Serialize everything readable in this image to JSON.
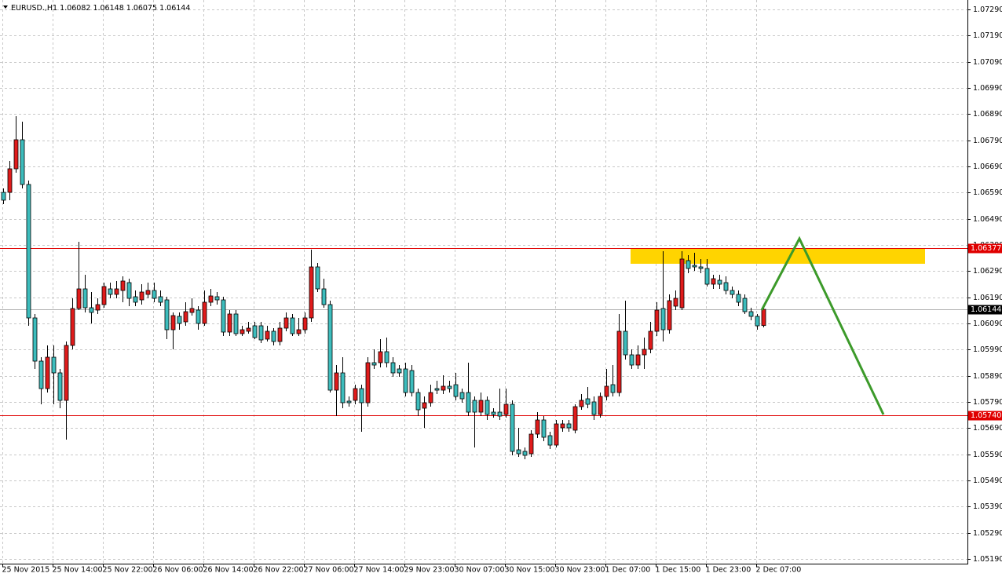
{
  "chart_data": {
    "type": "candlestick",
    "symbol": "EURUSD.,H1",
    "categories": [
      "25 Nov 2015",
      null,
      null,
      null,
      null,
      null,
      null,
      null,
      "25 Nov 14:00",
      null,
      null,
      null,
      null,
      null,
      null,
      null,
      "25 Nov 22:00",
      null,
      null,
      null,
      null,
      null,
      null,
      null,
      "26 Nov 06:00",
      null,
      null,
      null,
      null,
      null,
      null,
      null,
      "26 Nov 14:00",
      null,
      null,
      null,
      null,
      null,
      null,
      null,
      "26 Nov 22:00",
      null,
      null,
      null,
      null,
      null,
      null,
      null,
      "27 Nov 06:00",
      null,
      null,
      null,
      null,
      null,
      null,
      null,
      "27 Nov 14:00",
      null,
      null,
      null,
      null,
      null,
      null,
      null,
      "29 Nov 23:00",
      null,
      null,
      null,
      null,
      null,
      null,
      null,
      "30 Nov 07:00",
      null,
      null,
      null,
      null,
      null,
      null,
      null,
      "30 Nov 15:00",
      null,
      null,
      null,
      null,
      null,
      null,
      null,
      "30 Nov 23:00",
      null,
      null,
      null,
      null,
      null,
      null,
      null,
      "1 Dec 07:00",
      null,
      null,
      null,
      null,
      null,
      null,
      null,
      "1 Dec 15:00",
      null,
      null,
      null,
      null,
      null,
      null,
      null,
      "1 Dec 23:00",
      null,
      null,
      null,
      null,
      null,
      null,
      null,
      "2 Dec 07:00",
      null
    ],
    "open": [
      1.06591,
      1.06591,
      1.06681,
      1.06792,
      1.06621,
      1.06111,
      1.05946,
      1.05841,
      1.05961,
      1.05901,
      1.05796,
      1.06006,
      1.06147,
      1.06222,
      1.0615,
      1.06141,
      1.06162,
      1.06222,
      1.06201,
      1.06216,
      1.06246,
      1.06192,
      1.0618,
      1.06201,
      1.06216,
      1.06192,
      1.0618,
      1.06066,
      1.06117,
      1.06096,
      1.06132,
      1.06141,
      1.0609,
      1.06171,
      1.06192,
      1.0618,
      1.06057,
      1.06126,
      1.06051,
      1.0606,
      1.06081,
      1.06081,
      1.0603,
      1.0606,
      1.06021,
      1.06072,
      1.06111,
      1.06051,
      1.06066,
      1.06111,
      1.06306,
      1.06222,
      1.06162,
      1.05835,
      1.05901,
      1.05793,
      1.05796,
      1.05841,
      1.05787,
      1.0594,
      1.0594,
      1.05982,
      1.0594,
      1.05916,
      1.05916,
      1.0591,
      1.05826,
      1.05766,
      1.05787,
      1.05841,
      1.05835,
      1.0585,
      1.05856,
      1.05826,
      1.05826,
      1.05796,
      1.05751,
      1.05796,
      1.05751,
      1.05751,
      1.05742,
      1.05781,
      1.05607,
      1.05601,
      1.05592,
      1.05667,
      1.05721,
      1.05661,
      1.05625,
      1.05691,
      1.05706,
      1.05682,
      1.05772,
      1.05802,
      1.0579,
      1.05742,
      1.05811,
      1.05856,
      1.05826,
      1.0606,
      1.0597,
      1.05931,
      1.0597,
      1.05991,
      1.0606,
      1.06147,
      1.06066,
      1.06156,
      1.0615,
      1.0633,
      1.06312,
      1.06306,
      1.063,
      1.0624,
      1.06255,
      1.06246,
      1.06216,
      1.06201,
      1.06186,
      1.06135,
      1.06117,
      1.06082
    ],
    "high": [
      1.06606,
      1.06711,
      1.06882,
      1.06861,
      1.06636,
      1.06126,
      1.05961,
      1.06006,
      1.06006,
      1.05916,
      1.06021,
      1.06186,
      1.06402,
      1.06276,
      1.0621,
      1.06186,
      1.06246,
      1.06246,
      1.06252,
      1.0627,
      1.06261,
      1.06216,
      1.0624,
      1.06246,
      1.06246,
      1.06216,
      1.06192,
      1.06132,
      1.06132,
      1.06171,
      1.06186,
      1.06156,
      1.06216,
      1.06222,
      1.0621,
      1.06192,
      1.06141,
      1.06141,
      1.06081,
      1.06096,
      1.06096,
      1.06096,
      1.06081,
      1.06072,
      1.06096,
      1.06132,
      1.06126,
      1.06111,
      1.06132,
      1.06372,
      1.06321,
      1.06261,
      1.06177,
      1.05931,
      1.05961,
      1.05811,
      1.05856,
      1.05856,
      1.05961,
      1.05991,
      1.0603,
      1.06036,
      1.05961,
      1.05931,
      1.0594,
      1.05931,
      1.05841,
      1.05811,
      1.05856,
      1.05871,
      1.05892,
      1.05871,
      1.05901,
      1.05841,
      1.0594,
      1.05811,
      1.05826,
      1.05811,
      1.05766,
      1.05841,
      1.05841,
      1.05796,
      1.05691,
      1.05616,
      1.05682,
      1.05751,
      1.05736,
      1.05676,
      1.05721,
      1.05721,
      1.05721,
      1.05781,
      1.0582,
      1.05847,
      1.05811,
      1.05826,
      1.05916,
      1.05931,
      1.06126,
      1.06177,
      1.05991,
      1.06006,
      1.06036,
      1.06096,
      1.06171,
      1.06366,
      1.06201,
      1.06216,
      1.06366,
      1.06351,
      1.0636,
      1.06336,
      1.06336,
      1.06276,
      1.06276,
      1.0627,
      1.06231,
      1.06216,
      1.06201,
      1.0615,
      1.06126,
      1.06148
    ],
    "low": [
      1.06546,
      1.06561,
      1.06666,
      1.06606,
      1.06081,
      1.05916,
      1.05781,
      1.05826,
      1.05781,
      1.05766,
      1.05646,
      1.05991,
      1.06141,
      1.06132,
      1.0609,
      1.06126,
      1.0615,
      1.06186,
      1.06186,
      1.06171,
      1.06156,
      1.06156,
      1.06162,
      1.06186,
      1.06171,
      1.06156,
      1.0603,
      1.05991,
      1.06066,
      1.06081,
      1.0612,
      1.06066,
      1.06081,
      1.06156,
      1.06162,
      1.06042,
      1.06042,
      1.06042,
      1.06042,
      1.06051,
      1.0603,
      1.06015,
      1.06021,
      1.06006,
      1.06006,
      1.0606,
      1.06042,
      1.06042,
      1.06051,
      1.06096,
      1.0621,
      1.0615,
      1.05826,
      1.05736,
      1.05766,
      1.05772,
      1.05781,
      1.05676,
      1.05772,
      1.05916,
      1.05922,
      1.05922,
      1.05886,
      1.05886,
      1.05811,
      1.05811,
      1.05736,
      1.05691,
      1.05772,
      1.0582,
      1.0582,
      1.05826,
      1.05796,
      1.05787,
      1.05736,
      1.05616,
      1.05736,
      1.05721,
      1.0573,
      1.05721,
      1.0573,
      1.05586,
      1.0558,
      1.05571,
      1.0558,
      1.05652,
      1.0564,
      1.0561,
      1.05616,
      1.05676,
      1.05676,
      1.0567,
      1.0576,
      1.05766,
      1.05721,
      1.0573,
      1.05796,
      1.05811,
      1.05811,
      1.05952,
      1.05916,
      1.05916,
      1.05916,
      1.05976,
      1.06042,
      1.06021,
      1.06051,
      1.06141,
      1.06141,
      1.06282,
      1.06291,
      1.06282,
      1.06231,
      1.06222,
      1.06222,
      1.06201,
      1.06186,
      1.06156,
      1.06126,
      1.06102,
      1.06066,
      1.06075
    ],
    "close": [
      1.06561,
      1.06681,
      1.06792,
      1.06621,
      1.06111,
      1.05946,
      1.05841,
      1.05961,
      1.05901,
      1.05796,
      1.06006,
      1.06147,
      1.06222,
      1.0615,
      1.06132,
      1.06162,
      1.06231,
      1.06201,
      1.06222,
      1.06252,
      1.06186,
      1.06171,
      1.0621,
      1.06216,
      1.06186,
      1.06171,
      1.06066,
      1.0612,
      1.0609,
      1.06135,
      1.06147,
      1.0609,
      1.06171,
      1.06195,
      1.0618,
      1.06057,
      1.06126,
      1.06051,
      1.06066,
      1.06072,
      1.06036,
      1.06027,
      1.0606,
      1.06021,
      1.06072,
      1.06111,
      1.06051,
      1.06066,
      1.06111,
      1.06306,
      1.06222,
      1.06162,
      1.05835,
      1.05901,
      1.05787,
      1.05787,
      1.05841,
      1.05787,
      1.0594,
      1.05931,
      1.05982,
      1.0594,
      1.05901,
      1.05901,
      1.05826,
      1.05826,
      1.0576,
      1.05787,
      1.05826,
      1.05835,
      1.0585,
      1.05841,
      1.05811,
      1.05802,
      1.05751,
      1.05751,
      1.05796,
      1.05742,
      1.05742,
      1.05736,
      1.05781,
      1.05601,
      1.05592,
      1.05586,
      1.05667,
      1.05721,
      1.05655,
      1.05625,
      1.05706,
      1.05706,
      1.05691,
      1.05772,
      1.05796,
      1.05781,
      1.05742,
      1.05811,
      1.0585,
      1.05826,
      1.0606,
      1.0597,
      1.05931,
      1.0597,
      1.05991,
      1.0606,
      1.06141,
      1.06066,
      1.06177,
      1.06186,
      1.06336,
      1.063,
      1.06306,
      1.063,
      1.0624,
      1.06261,
      1.0624,
      1.06216,
      1.06201,
      1.06171,
      1.06135,
      1.06117,
      1.06081,
      1.06144
    ],
    "up_color": "#e01b1b",
    "down_color": "#3dbdbd",
    "ylim": [
      1.05172,
      1.07326
    ],
    "yticks": [
      {
        "value": 1.0519,
        "label": "1.05190"
      },
      {
        "value": 1.0529,
        "label": "1.05290"
      },
      {
        "value": 1.0539,
        "label": "1.05390"
      },
      {
        "value": 1.0549,
        "label": "1.05490"
      },
      {
        "value": 1.0559,
        "label": "1.05590"
      },
      {
        "value": 1.0569,
        "label": "1.05690"
      },
      {
        "value": 1.0579,
        "label": "1.05790"
      },
      {
        "value": 1.0589,
        "label": "1.05890"
      },
      {
        "value": 1.0599,
        "label": "1.05990"
      },
      {
        "value": 1.0609,
        "label": "1.06090"
      },
      {
        "value": 1.0619,
        "label": "1.06190"
      },
      {
        "value": 1.0629,
        "label": "1.06290"
      },
      {
        "value": 1.0639,
        "label": "1.06390"
      },
      {
        "value": 1.0649,
        "label": "1.06490"
      },
      {
        "value": 1.0659,
        "label": "1.06590"
      },
      {
        "value": 1.0669,
        "label": "1.06690"
      },
      {
        "value": 1.0679,
        "label": "1.06790"
      },
      {
        "value": 1.0689,
        "label": "1.06890"
      },
      {
        "value": 1.0699,
        "label": "1.06990"
      },
      {
        "value": 1.0709,
        "label": "1.07090"
      },
      {
        "value": 1.0719,
        "label": "1.07190"
      },
      {
        "value": 1.0729,
        "label": "1.07290"
      }
    ],
    "grid": true,
    "levels": [
      1.06377,
      {
        "value": 1.0574,
        "label": "1.05740"
      }
    ],
    "level_color": "#e00000",
    "zone": {
      "x": [
        99.875,
        146.75
      ],
      "y": [
        1.06318,
        1.06376
      ],
      "color": "#ffd400"
    },
    "forecast": {
      "x": [
        120.75,
        126.75,
        140.125
      ],
      "values": [
        1.06141,
        1.06414,
        1.05742
      ],
      "color": "#3c9a2a"
    }
  }
}
